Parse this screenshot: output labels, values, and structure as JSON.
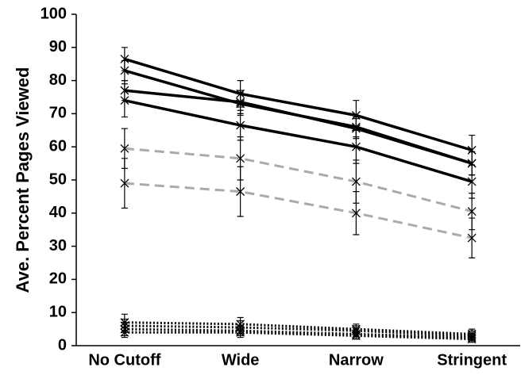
{
  "chart_data": {
    "type": "line",
    "y_label": "Ave. Percent Pages Viewed",
    "categories": [
      "No Cutoff",
      "Wide",
      "Narrow",
      "Stringent"
    ],
    "ylim": [
      0,
      100
    ],
    "yticks": [
      0,
      10,
      20,
      30,
      40,
      50,
      60,
      70,
      80,
      90,
      100
    ],
    "grid": false,
    "series": [
      {
        "color": "#000000",
        "line_style": "solid",
        "values": [
          86.5,
          76,
          69.5,
          59
        ],
        "errors": [
          3.5,
          4,
          4.5,
          4.5
        ]
      },
      {
        "color": "#000000",
        "line_style": "solid",
        "values": [
          83,
          73,
          66,
          55
        ],
        "errors": [
          3,
          3.5,
          3,
          3.5
        ]
      },
      {
        "color": "#000000",
        "line_style": "solid",
        "values": [
          77,
          73.5,
          65.5,
          55
        ],
        "errors": [
          3,
          3.5,
          3,
          3.5
        ]
      },
      {
        "color": "#000000",
        "line_style": "solid",
        "values": [
          74,
          66.5,
          60,
          49.5
        ],
        "errors": [
          5,
          4.5,
          5,
          5
        ]
      },
      {
        "color": "#aaaaaa",
        "line_style": "dashed",
        "values": [
          59.5,
          56.5,
          49.5,
          40.5
        ],
        "errors": [
          6,
          6.5,
          6.5,
          5.5
        ]
      },
      {
        "color": "#aaaaaa",
        "line_style": "dashed",
        "values": [
          49,
          46.5,
          40,
          32.5
        ],
        "errors": [
          7.5,
          7.5,
          6.5,
          6
        ]
      },
      {
        "color": "#000000",
        "line_style": "dotted",
        "values": [
          7,
          6.5,
          5,
          3.5
        ],
        "errors": [
          2.5,
          2,
          1.5,
          1.5
        ]
      },
      {
        "color": "#000000",
        "line_style": "dotted",
        "values": [
          6,
          5.5,
          4.5,
          3
        ],
        "errors": [
          2,
          2,
          1.5,
          1.5
        ]
      },
      {
        "color": "#000000",
        "line_style": "dotted",
        "values": [
          5,
          4.5,
          3.5,
          2.5
        ],
        "errors": [
          2,
          1.5,
          1.5,
          1
        ]
      },
      {
        "color": "#000000",
        "line_style": "dotted",
        "values": [
          4,
          4,
          3,
          2
        ],
        "errors": [
          1.5,
          1.5,
          1,
          1
        ]
      }
    ]
  }
}
